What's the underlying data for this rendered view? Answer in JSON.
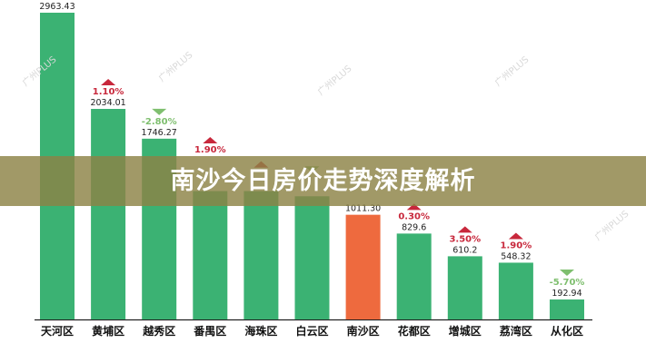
{
  "banner": {
    "title": "南沙今日房价走势深度解析"
  },
  "watermark": "广州PLUS",
  "colors": {
    "bar": "#3bb273",
    "highlight": "#ee6a3e",
    "up": "#c8283c",
    "down": "#7fbf6f"
  },
  "chart_data": {
    "type": "bar",
    "categories": [
      "天河区",
      "黄埔区",
      "越秀区",
      "番禺区",
      "海珠区",
      "白云区",
      "南沙区",
      "花都区",
      "增城区",
      "荔湾区",
      "从化区"
    ],
    "values": [
      2963.43,
      2034.01,
      1746.27,
      1240,
      1240,
      1190,
      1011.3,
      829.6,
      610.2,
      548.32,
      192.94
    ],
    "value_labels": [
      "2963.43",
      "2034.01",
      "1746.27",
      "",
      "",
      "",
      "1011.30",
      "829.6",
      "610.2",
      "548.32",
      "192.94"
    ],
    "changes": [
      "",
      "1.10%",
      "-2.80%",
      "1.90%",
      "",
      "",
      "",
      "0.30%",
      "3.50%",
      "1.90%",
      "-5.70%"
    ],
    "change_direction": [
      "",
      "up",
      "down",
      "up",
      "up",
      "down",
      "",
      "up",
      "up",
      "up",
      "down"
    ],
    "highlight": "南沙区",
    "ylim": [
      0,
      2963.43
    ],
    "grid": false
  }
}
